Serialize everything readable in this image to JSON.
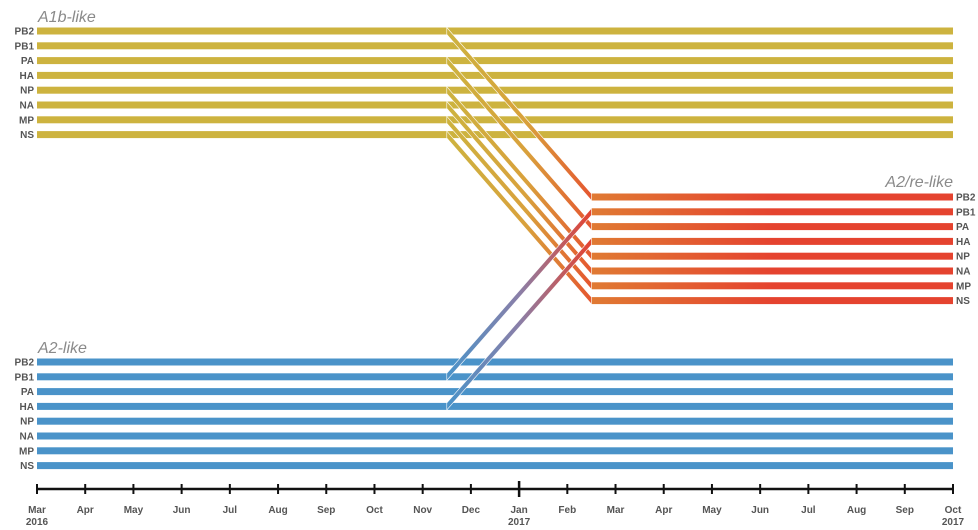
{
  "groups": {
    "a1b": {
      "label": "A1b-like",
      "color": "#cdb33f",
      "segments": [
        "PB2",
        "PB1",
        "PA",
        "HA",
        "NP",
        "NA",
        "MP",
        "NS"
      ]
    },
    "a2": {
      "label": "A2-like",
      "color": "#4a93c9",
      "segments": [
        "PB2",
        "PB1",
        "PA",
        "HA",
        "NP",
        "NA",
        "MP",
        "NS"
      ]
    },
    "re": {
      "label": "A2/re-like",
      "color": "#e5432f",
      "segments": [
        "PB2",
        "PB1",
        "PA",
        "HA",
        "NP",
        "NA",
        "MP",
        "NS"
      ]
    }
  },
  "timeline": {
    "months": [
      "Mar",
      "Apr",
      "May",
      "Jun",
      "Jul",
      "Aug",
      "Sep",
      "Oct",
      "Nov",
      "Dec",
      "Jan",
      "Feb",
      "Mar",
      "Apr",
      "May",
      "Jun",
      "Jul",
      "Aug",
      "Sep",
      "Oct"
    ],
    "year_labels": [
      {
        "month_index": 0,
        "year": "2016"
      },
      {
        "month_index": 10,
        "year": "2017"
      },
      {
        "month_index": 19,
        "year": "2017"
      }
    ],
    "major_tick_index": 10
  },
  "transitions": [
    {
      "from_group": "a1b",
      "segment": "PB2",
      "start_month": 8.5,
      "end_month": 11.5,
      "to_segment": "PB2"
    },
    {
      "from_group": "a1b",
      "segment": "PA",
      "start_month": 8.5,
      "end_month": 11.5,
      "to_segment": "PA"
    },
    {
      "from_group": "a1b",
      "segment": "NP",
      "start_month": 8.5,
      "end_month": 11.5,
      "to_segment": "NP"
    },
    {
      "from_group": "a1b",
      "segment": "NA",
      "start_month": 8.5,
      "end_month": 11.5,
      "to_segment": "NA"
    },
    {
      "from_group": "a1b",
      "segment": "MP",
      "start_month": 8.5,
      "end_month": 11.5,
      "to_segment": "MP"
    },
    {
      "from_group": "a1b",
      "segment": "NS",
      "start_month": 8.5,
      "end_month": 11.5,
      "to_segment": "NS"
    },
    {
      "from_group": "a2",
      "segment": "PB1",
      "start_month": 8.5,
      "end_month": 11.5,
      "to_segment": "PB1"
    },
    {
      "from_group": "a2",
      "segment": "HA",
      "start_month": 8.5,
      "end_month": 11.5,
      "to_segment": "HA"
    }
  ]
}
